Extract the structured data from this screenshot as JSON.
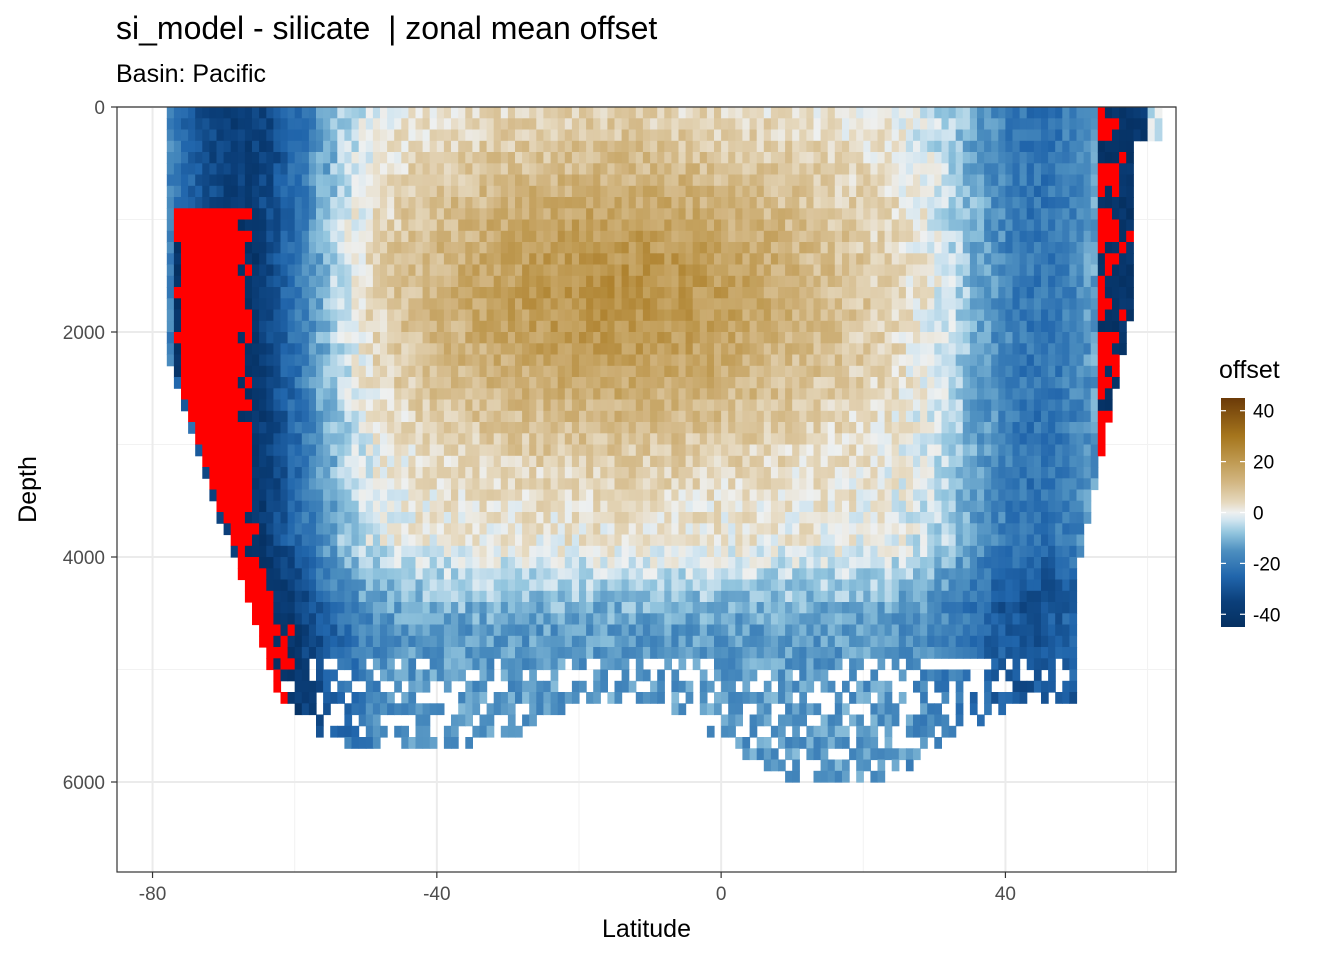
{
  "chart_data": {
    "type": "heatmap",
    "title": "si_model - silicate  | zonal mean offset",
    "subtitle": "Basin: Pacific",
    "xlabel": "Latitude",
    "ylabel": "Depth",
    "xlim": [
      -85,
      64
    ],
    "ylim": [
      6800,
      0
    ],
    "y_reversed": true,
    "x_ticks": [
      -80,
      -40,
      0,
      40
    ],
    "x_tick_labels": [
      "-80",
      "-40",
      "0",
      "40"
    ],
    "y_ticks": [
      0,
      2000,
      4000,
      6000
    ],
    "y_tick_labels": [
      "0",
      "2000",
      "4000",
      "6000"
    ],
    "grid": true,
    "legend": {
      "title": "offset",
      "placement": "right",
      "range": [
        -45,
        45
      ],
      "ticks": [
        40,
        20,
        0,
        -20,
        -40
      ],
      "tick_labels": [
        "40",
        "20",
        "0",
        "-20",
        "-40"
      ],
      "colors": [
        "#053061",
        "#2166ac",
        "#4393c3",
        "#92c5de",
        "#d1e5f0",
        "#f0f0f0",
        "#e6d3b0",
        "#c2a15e",
        "#a6761d",
        "#6b3a08"
      ],
      "out_of_range_color": "#ff0000"
    },
    "field_description": {
      "southern_ocean": {
        "lat_range": [
          -78,
          -55
        ],
        "offset": -42
      },
      "north_pacific_west": {
        "lat_range": [
          30,
          55
        ],
        "offset": -18
      },
      "subtropical_upper": {
        "lat_range": [
          -55,
          20
        ],
        "depth_range": [
          100,
          3000
        ],
        "offset": 15
      },
      "deep_pacific": {
        "lat_range": [
          -50,
          50
        ],
        "depth_range": [
          4000,
          6000
        ],
        "offset": -15
      },
      "clipped_high_south": {
        "lat_range": [
          -78,
          -60
        ],
        "depth_range": [
          800,
          5300
        ],
        "offset": -60
      },
      "clipped_north": {
        "lat_range": [
          52,
          60
        ],
        "depth_range": [
          200,
          3500
        ],
        "offset": -60
      }
    }
  }
}
